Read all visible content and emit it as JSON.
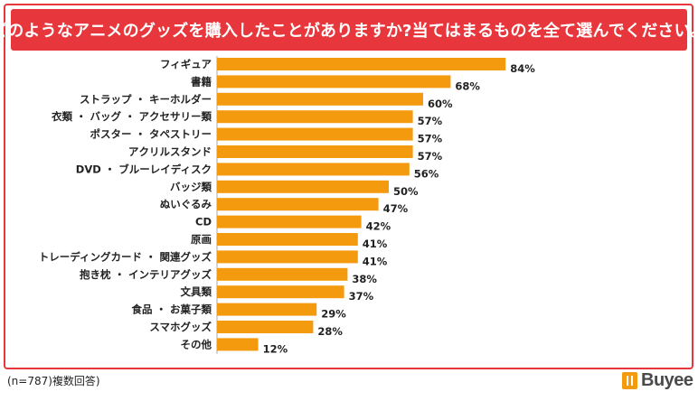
{
  "header": {
    "title": "どのようなアニメのグッズを購入したことがありますか?当てはまるものを全て選んでください。"
  },
  "chart_data": {
    "type": "bar",
    "orientation": "horizontal",
    "title": "どのようなアニメのグッズを購入したことがありますか?当てはまるものを全て選んでください。",
    "categories": [
      "フィギュア",
      "書籍",
      "ストラップ ・ キーホルダー",
      "衣類 ・ バッグ ・ アクセサリー類",
      "ポスター ・ タペストリー",
      "アクリルスタンド",
      "DVD ・ ブルーレイディスク",
      "バッジ類",
      "ぬいぐるみ",
      "CD",
      "原画",
      "トレーディングカード ・ 関連グッズ",
      "抱き枕 ・ インテリアグッズ",
      "文具類",
      "食品 ・ お菓子類",
      "スマホグッズ",
      "その他"
    ],
    "values": [
      84,
      68,
      60,
      57,
      57,
      57,
      56,
      50,
      47,
      42,
      41,
      41,
      38,
      37,
      29,
      28,
      12
    ],
    "value_labels": [
      "84%",
      "68%",
      "60%",
      "57%",
      "57%",
      "57%",
      "56%",
      "50%",
      "47%",
      "42%",
      "41%",
      "41%",
      "38%",
      "37%",
      "29%",
      "28%",
      "12%"
    ],
    "xlim": [
      0,
      100
    ],
    "unit": "%",
    "bar_color": "#f39a0e",
    "axis_color": "#aaaaaa"
  },
  "footer": {
    "note": "(n=787)複数回答)",
    "brand": "Buyee",
    "brand_color": "#f39a0e"
  },
  "colors": {
    "accent": "#e8373c"
  }
}
